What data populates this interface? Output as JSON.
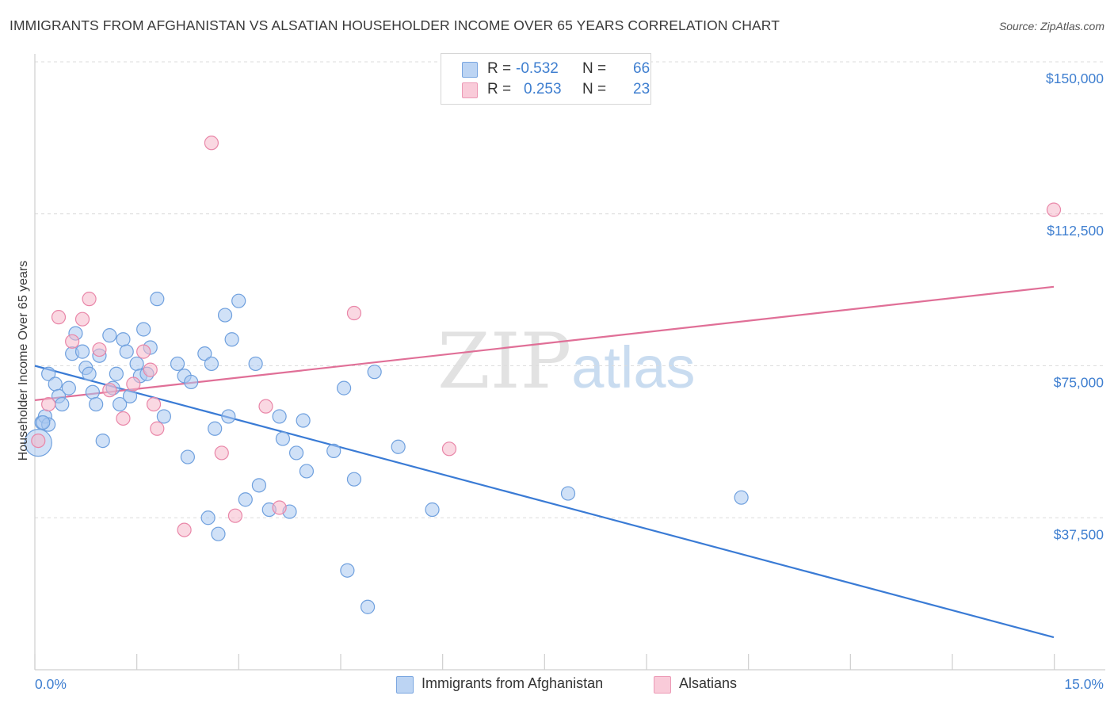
{
  "title": "IMMIGRANTS FROM AFGHANISTAN VS ALSATIAN HOUSEHOLDER INCOME OVER 65 YEARS CORRELATION CHART",
  "source": "Source: ZipAtlas.com",
  "watermark": {
    "zip": "ZIP",
    "atlas": "atlas"
  },
  "legend": {
    "rows": [
      {
        "r_label": "R =",
        "r_value": "-0.532",
        "n_label": "N =",
        "n_value": "66",
        "color": "#a9c8f0"
      },
      {
        "r_label": "R =",
        "r_value": "0.253",
        "n_label": "N =",
        "n_value": "23",
        "color": "#f6b8cb"
      }
    ]
  },
  "bottom_legend": {
    "items": [
      {
        "label": "Immigrants from Afghanistan",
        "color": "#a9c8f0"
      },
      {
        "label": "Alsatians",
        "color": "#f6b8cb"
      }
    ]
  },
  "chart_data": {
    "type": "scatter",
    "title": "IMMIGRANTS FROM AFGHANISTAN VS ALSATIAN HOUSEHOLDER INCOME OVER 65 YEARS CORRELATION CHART",
    "xlabel": "",
    "ylabel": "Householder Income Over 65 years",
    "xlim": [
      0.0,
      15.0
    ],
    "ylim": [
      0,
      153000
    ],
    "x_tick_labels": [
      "0.0%",
      "15.0%"
    ],
    "y_ticks": [
      37500,
      75000,
      112500,
      150000
    ],
    "y_tick_labels": [
      "$37,500",
      "$75,000",
      "$112,500",
      "$150,000"
    ],
    "grid": true,
    "series": [
      {
        "name": "Immigrants from Afghanistan",
        "color": "#6fa0de",
        "fill": "#a9c8f0",
        "trend": {
          "x": [
            0.0,
            15.0
          ],
          "y": [
            75000,
            8000
          ]
        },
        "points": [
          [
            0.05,
            56000
          ],
          [
            0.1,
            61000
          ],
          [
            0.15,
            62500
          ],
          [
            0.2,
            60500
          ],
          [
            0.2,
            73000
          ],
          [
            0.3,
            70500
          ],
          [
            0.35,
            67500
          ],
          [
            0.4,
            65500
          ],
          [
            0.5,
            69500
          ],
          [
            0.55,
            78000
          ],
          [
            0.6,
            83000
          ],
          [
            0.7,
            78500
          ],
          [
            0.75,
            74500
          ],
          [
            0.8,
            73000
          ],
          [
            0.85,
            68500
          ],
          [
            0.9,
            65500
          ],
          [
            0.95,
            77500
          ],
          [
            1.0,
            56500
          ],
          [
            1.1,
            82500
          ],
          [
            1.15,
            69500
          ],
          [
            1.2,
            73000
          ],
          [
            1.25,
            65500
          ],
          [
            1.3,
            81500
          ],
          [
            1.35,
            78500
          ],
          [
            1.4,
            67500
          ],
          [
            1.5,
            75500
          ],
          [
            1.55,
            72500
          ],
          [
            1.6,
            84000
          ],
          [
            1.65,
            73000
          ],
          [
            1.7,
            79500
          ],
          [
            1.8,
            91500
          ],
          [
            1.9,
            62500
          ],
          [
            2.1,
            75500
          ],
          [
            2.2,
            72500
          ],
          [
            2.25,
            52500
          ],
          [
            2.3,
            71000
          ],
          [
            2.5,
            78000
          ],
          [
            2.55,
            37500
          ],
          [
            2.6,
            75500
          ],
          [
            2.65,
            59500
          ],
          [
            2.7,
            33500
          ],
          [
            2.8,
            87500
          ],
          [
            2.85,
            62500
          ],
          [
            2.9,
            81500
          ],
          [
            3.0,
            91000
          ],
          [
            3.1,
            42000
          ],
          [
            3.25,
            75500
          ],
          [
            3.3,
            45500
          ],
          [
            3.45,
            39500
          ],
          [
            3.6,
            62500
          ],
          [
            3.65,
            57000
          ],
          [
            3.75,
            39000
          ],
          [
            3.85,
            53500
          ],
          [
            3.95,
            61500
          ],
          [
            4.0,
            49000
          ],
          [
            4.4,
            54000
          ],
          [
            4.55,
            69500
          ],
          [
            4.6,
            24500
          ],
          [
            4.7,
            47000
          ],
          [
            4.9,
            15500
          ],
          [
            5.0,
            73500
          ],
          [
            5.35,
            55000
          ],
          [
            5.85,
            39500
          ],
          [
            7.85,
            43500
          ],
          [
            10.4,
            42500
          ],
          [
            0.12,
            61000
          ]
        ]
      },
      {
        "name": "Alsatians",
        "color": "#e986a8",
        "fill": "#f6b8cb",
        "trend": {
          "x": [
            0.0,
            15.0
          ],
          "y": [
            66500,
            94500
          ]
        },
        "points": [
          [
            0.05,
            56500
          ],
          [
            0.2,
            65500
          ],
          [
            0.35,
            87000
          ],
          [
            0.55,
            81000
          ],
          [
            0.7,
            86500
          ],
          [
            0.8,
            91500
          ],
          [
            0.95,
            79000
          ],
          [
            1.1,
            69000
          ],
          [
            1.3,
            62000
          ],
          [
            1.45,
            70500
          ],
          [
            1.6,
            78500
          ],
          [
            1.7,
            74000
          ],
          [
            1.75,
            65500
          ],
          [
            1.8,
            59500
          ],
          [
            2.2,
            34500
          ],
          [
            2.6,
            130000
          ],
          [
            2.75,
            53500
          ],
          [
            2.95,
            38000
          ],
          [
            3.4,
            65000
          ],
          [
            3.6,
            40000
          ],
          [
            4.7,
            88000
          ],
          [
            6.1,
            54500
          ],
          [
            15.0,
            113500
          ]
        ]
      }
    ]
  }
}
